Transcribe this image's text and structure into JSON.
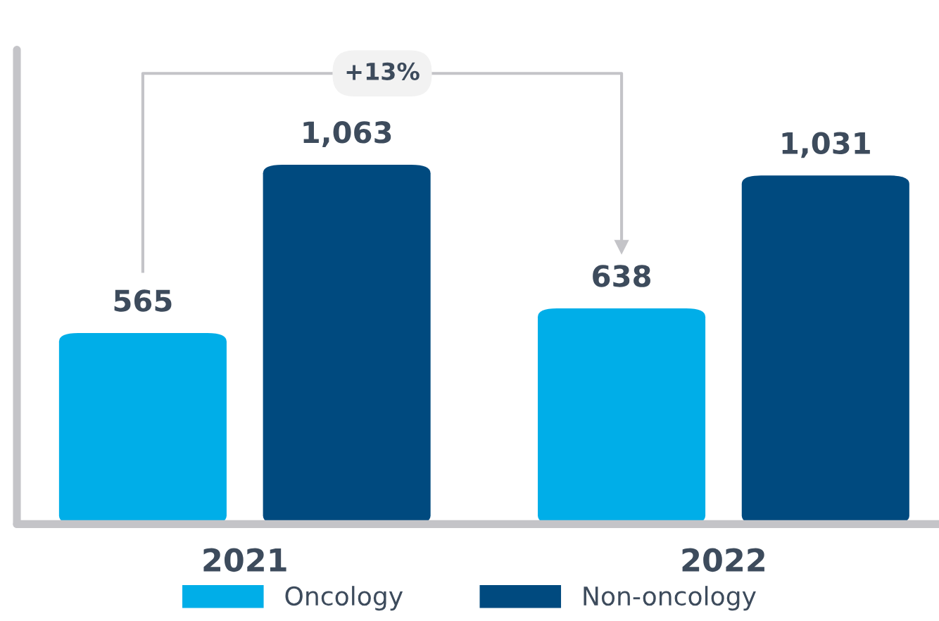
{
  "chart_data": {
    "type": "bar",
    "relative": false,
    "categories": [
      "2021",
      "2022"
    ],
    "series": [
      {
        "name": "Oncology",
        "color": "#00aee8",
        "values": [
          565,
          638
        ],
        "value_labels": [
          "565",
          "638"
        ]
      },
      {
        "name": "Non-oncology",
        "color": "#004a7f",
        "values": [
          1063,
          1031
        ],
        "value_labels": [
          "1,063",
          "1,031"
        ]
      }
    ],
    "legend": "bottom",
    "grid": false,
    "annotations": [
      "+13%"
    ]
  }
}
